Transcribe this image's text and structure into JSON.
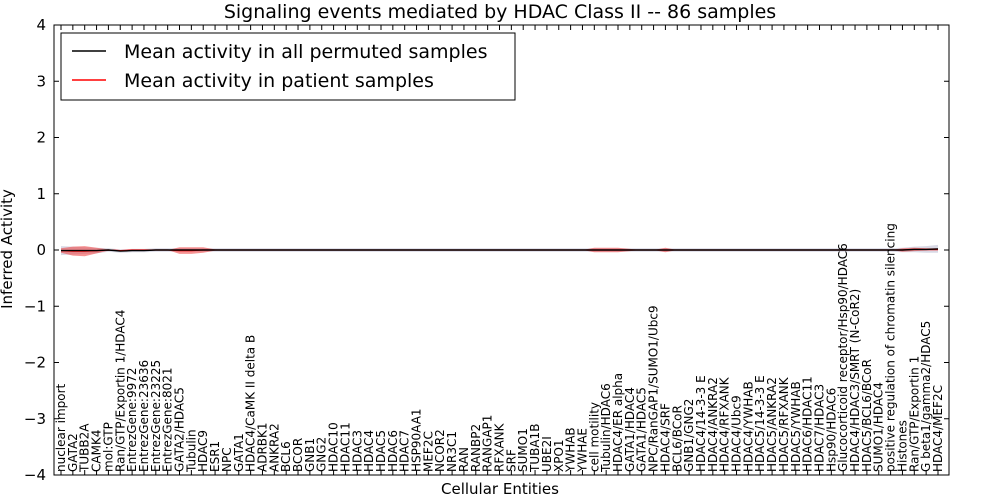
{
  "chart_data": {
    "type": "line",
    "title": "Signaling events mediated by HDAC Class II -- 86 samples",
    "xlabel": "Cellular Entities",
    "ylabel": "Inferred Activity",
    "ylim": [
      -4,
      4
    ],
    "yticks": [
      "4",
      "3",
      "2",
      "1",
      "0",
      "−1",
      "−2",
      "−3",
      "−4"
    ],
    "legend": {
      "placement": "top-left",
      "entries": [
        {
          "label": "Mean activity in all permuted samples",
          "color": "#000000"
        },
        {
          "label": "Mean activity in patient samples",
          "color": "#ff0000"
        }
      ]
    },
    "categories": [
      "nuclear import",
      "GATA2",
      "TUBB2A",
      "CAMK4",
      "mol:GTP",
      "Ran/GTP/Exportin 1/HDAC4",
      "EntrezGene:9972",
      "EntrezGene:23636",
      "EntrezGene:23225",
      "EntrezGene:8021",
      "GATA2/HDAC5",
      "Tubulin",
      "HDAC9",
      "ESR1",
      "NPC",
      "GATA1",
      "HDAC4/CaMK II delta B",
      "ADRBK1",
      "ANKRA2",
      "BCL6",
      "BCOR",
      "GNB1",
      "GNG2",
      "HDAC10",
      "HDAC11",
      "HDAC3",
      "HDAC4",
      "HDAC5",
      "HDAC6",
      "HDAC7",
      "HSP90AA1",
      "MEF2C",
      "NCOR2",
      "NR3C1",
      "RAN",
      "RANBP2",
      "RANGAP1",
      "RFXANK",
      "SRF",
      "SUMO1",
      "TUBA1B",
      "UBE2I",
      "XPO1",
      "YWHAB",
      "YWHAE",
      "cell motility",
      "Tubulin/HDAC6",
      "HDAC4/ER alpha",
      "GATA1/HDAC4",
      "GATA1/HDAC5",
      "NPC/RanGAP1/SUMO1/Ubc9",
      "HDAC4/SRF",
      "BCL6/BCoR",
      "GNB1/GNG2",
      "HDAC4/14-3-3 E",
      "HDAC4/ANKRA2",
      "HDAC4/RFXANK",
      "HDAC4/Ubc9",
      "HDAC4/YWHAB",
      "HDAC5/14-3-3 E",
      "HDAC5/ANKRA2",
      "HDAC5/RFXANK",
      "HDAC5/YWHAB",
      "HDAC6/HDAC11",
      "HDAC7/HDAC3",
      "Hsp90/HDAC6",
      "Glucocorticoid receptor/Hsp90/HDAC6",
      "HDAC4/HDAC3/SMRT (N-CoR2)",
      "HDAC5/BCL6/BCoR",
      "SUMO1/HDAC4",
      "positive regulation of chromatin silencing",
      "Histones",
      "Ran/GTP/Exportin 1",
      "G beta1/gamma2/HDAC5",
      "HDAC4/MEF2C"
    ],
    "series": [
      {
        "name": "Mean activity in all permuted samples",
        "color": "#000000",
        "values": [
          -0.01,
          -0.01,
          -0.01,
          -0.01,
          0.0,
          -0.02,
          -0.01,
          -0.01,
          0.0,
          0.0,
          0.0,
          0.0,
          0.0,
          0.0,
          0.0,
          0.0,
          0.0,
          0.0,
          0.0,
          0.0,
          0.0,
          0.0,
          0.0,
          0.0,
          0.0,
          0.0,
          0.0,
          0.0,
          0.0,
          0.0,
          0.0,
          0.0,
          0.0,
          0.0,
          0.0,
          0.0,
          0.0,
          0.0,
          0.0,
          0.0,
          0.0,
          0.0,
          0.0,
          0.0,
          0.0,
          0.0,
          0.0,
          0.0,
          0.0,
          0.0,
          0.0,
          0.0,
          0.0,
          0.0,
          0.0,
          0.0,
          0.0,
          0.0,
          0.0,
          0.0,
          0.0,
          0.0,
          0.0,
          0.0,
          0.0,
          0.0,
          0.0,
          0.0,
          0.0,
          0.0,
          0.0,
          0.0,
          0.01,
          0.01,
          0.02
        ],
        "band": [
          0.08,
          0.07,
          0.06,
          0.05,
          0.03,
          0.03,
          0.03,
          0.03,
          0.03,
          0.03,
          0.03,
          0.03,
          0.03,
          0.03,
          0.03,
          0.03,
          0.03,
          0.03,
          0.03,
          0.03,
          0.03,
          0.03,
          0.03,
          0.03,
          0.03,
          0.03,
          0.03,
          0.03,
          0.03,
          0.03,
          0.03,
          0.03,
          0.03,
          0.03,
          0.03,
          0.03,
          0.03,
          0.03,
          0.03,
          0.03,
          0.03,
          0.03,
          0.03,
          0.03,
          0.03,
          0.03,
          0.03,
          0.03,
          0.03,
          0.03,
          0.03,
          0.03,
          0.03,
          0.03,
          0.03,
          0.03,
          0.03,
          0.03,
          0.03,
          0.03,
          0.03,
          0.03,
          0.03,
          0.03,
          0.03,
          0.03,
          0.03,
          0.03,
          0.03,
          0.03,
          0.03,
          0.04,
          0.05,
          0.06,
          0.07
        ]
      },
      {
        "name": "Mean activity in patient samples",
        "color": "#ff0000",
        "values": [
          -0.01,
          -0.02,
          -0.02,
          -0.01,
          0.0,
          -0.01,
          0.0,
          0.0,
          0.0,
          0.0,
          -0.01,
          -0.01,
          0.0,
          0.0,
          0.0,
          0.0,
          0.0,
          0.0,
          0.0,
          0.0,
          0.0,
          0.0,
          0.0,
          0.0,
          0.0,
          0.0,
          0.0,
          0.0,
          0.0,
          0.0,
          0.0,
          0.0,
          0.0,
          0.0,
          0.0,
          0.0,
          0.0,
          0.0,
          0.0,
          0.0,
          0.0,
          0.0,
          0.0,
          0.0,
          0.0,
          0.0,
          0.0,
          0.0,
          0.0,
          0.0,
          0.0,
          0.0,
          0.0,
          0.0,
          0.0,
          0.0,
          0.0,
          0.0,
          0.0,
          0.0,
          0.0,
          0.0,
          0.0,
          0.0,
          0.0,
          0.0,
          0.0,
          0.0,
          0.0,
          0.0,
          0.0,
          0.0,
          0.01,
          0.01,
          0.01
        ],
        "band": [
          0.04,
          0.08,
          0.09,
          0.05,
          0.01,
          0.01,
          0.0,
          0.0,
          0.0,
          0.0,
          0.06,
          0.06,
          0.05,
          0.01,
          0.0,
          0.0,
          0.0,
          0.0,
          0.0,
          0.0,
          0.0,
          0.0,
          0.0,
          0.0,
          0.0,
          0.0,
          0.0,
          0.0,
          0.0,
          0.0,
          0.0,
          0.0,
          0.0,
          0.0,
          0.0,
          0.0,
          0.0,
          0.0,
          0.0,
          0.0,
          0.0,
          0.0,
          0.0,
          0.0,
          0.0,
          0.04,
          0.04,
          0.04,
          0.02,
          0.0,
          0.0,
          0.04,
          0.0,
          0.0,
          0.0,
          0.0,
          0.0,
          0.0,
          0.0,
          0.0,
          0.0,
          0.0,
          0.0,
          0.0,
          0.0,
          0.0,
          0.0,
          0.0,
          0.0,
          0.0,
          0.0,
          0.03,
          0.03,
          0.02,
          0.02
        ]
      }
    ]
  }
}
